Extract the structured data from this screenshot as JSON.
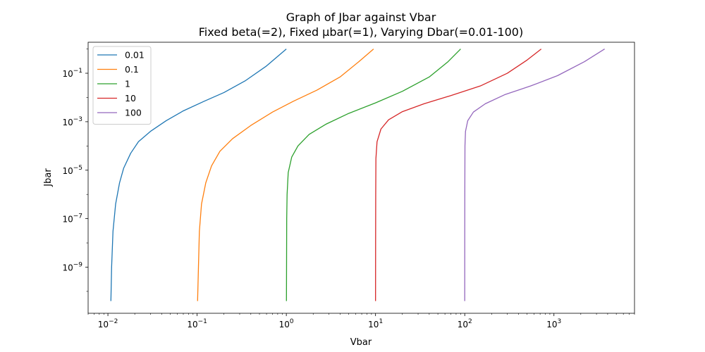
{
  "chart_data": {
    "type": "line",
    "title": "Graph of Jbar against Vbar",
    "subtitle": "Fixed beta(=2), Fixed µbar(=1), Varying Dbar(=0.01-100)",
    "xlabel": "Vbar",
    "ylabel": "Jbar",
    "xscale": "log",
    "yscale": "log",
    "xlim": [
      0.006,
      8000
    ],
    "ylim": [
      1.25e-11,
      1.9
    ],
    "x_ticks": [
      {
        "value": 0.01,
        "base": "10",
        "exp": "−2"
      },
      {
        "value": 0.1,
        "base": "10",
        "exp": "−1"
      },
      {
        "value": 1,
        "base": "10",
        "exp": "0"
      },
      {
        "value": 10,
        "base": "10",
        "exp": "1"
      },
      {
        "value": 100,
        "base": "10",
        "exp": "2"
      },
      {
        "value": 1000,
        "base": "10",
        "exp": "3"
      }
    ],
    "y_ticks": [
      {
        "value": 1e-09,
        "base": "10",
        "exp": "−9"
      },
      {
        "value": 1e-07,
        "base": "10",
        "exp": "−7"
      },
      {
        "value": 1e-05,
        "base": "10",
        "exp": "−5"
      },
      {
        "value": 0.001,
        "base": "10",
        "exp": "−3"
      },
      {
        "value": 0.1,
        "base": "10",
        "exp": "−1"
      }
    ],
    "grid": false,
    "legend_position": "top-left",
    "series": [
      {
        "name": "0.01",
        "color": "#1f77b4",
        "points": [
          [
            0.0108,
            4e-11
          ],
          [
            0.011,
            1e-09
          ],
          [
            0.0114,
            3e-08
          ],
          [
            0.0122,
            4e-07
          ],
          [
            0.0135,
            3e-06
          ],
          [
            0.015,
            1.2e-05
          ],
          [
            0.018,
            5e-05
          ],
          [
            0.022,
            0.00015
          ],
          [
            0.03,
            0.0004
          ],
          [
            0.045,
            0.0011
          ],
          [
            0.07,
            0.0028
          ],
          [
            0.12,
            0.007
          ],
          [
            0.2,
            0.016
          ],
          [
            0.35,
            0.05
          ],
          [
            0.6,
            0.2
          ],
          [
            1.0,
            1.0
          ]
        ]
      },
      {
        "name": "0.1",
        "color": "#ff7f0e",
        "points": [
          [
            0.1012,
            4e-11
          ],
          [
            0.1035,
            1e-09
          ],
          [
            0.106,
            3e-08
          ],
          [
            0.112,
            4e-07
          ],
          [
            0.125,
            3e-06
          ],
          [
            0.145,
            1.5e-05
          ],
          [
            0.18,
            6e-05
          ],
          [
            0.25,
            0.0002
          ],
          [
            0.4,
            0.0007
          ],
          [
            0.7,
            0.0025
          ],
          [
            1.2,
            0.007
          ],
          [
            2.2,
            0.02
          ],
          [
            4.0,
            0.07
          ],
          [
            6.5,
            0.3
          ],
          [
            9.5,
            1.0
          ]
        ]
      },
      {
        "name": "1",
        "color": "#2ca02c",
        "points": [
          [
            1.003,
            4e-11
          ],
          [
            1.006,
            1e-09
          ],
          [
            1.01,
            1e-07
          ],
          [
            1.02,
            1e-06
          ],
          [
            1.05,
            8e-06
          ],
          [
            1.15,
            3.5e-05
          ],
          [
            1.35,
            0.0001
          ],
          [
            1.8,
            0.0003
          ],
          [
            2.8,
            0.0008
          ],
          [
            5,
            0.0022
          ],
          [
            10,
            0.006
          ],
          [
            20,
            0.018
          ],
          [
            40,
            0.07
          ],
          [
            65,
            0.3
          ],
          [
            90,
            1.0
          ]
        ]
      },
      {
        "name": "10",
        "color": "#d62728",
        "points": [
          [
            10.0,
            4e-11
          ],
          [
            10.02,
            1e-08
          ],
          [
            10.05,
            1e-06
          ],
          [
            10.1,
            3e-05
          ],
          [
            10.4,
            0.00015
          ],
          [
            11.5,
            0.0005
          ],
          [
            14,
            0.0012
          ],
          [
            20,
            0.0026
          ],
          [
            35,
            0.0055
          ],
          [
            70,
            0.012
          ],
          [
            150,
            0.03
          ],
          [
            300,
            0.1
          ],
          [
            500,
            0.35
          ],
          [
            720,
            1.0
          ]
        ]
      },
      {
        "name": "100",
        "color": "#9467bd",
        "points": [
          [
            100.0,
            4e-11
          ],
          [
            100.05,
            1e-08
          ],
          [
            100.2,
            1e-06
          ],
          [
            100.6,
            0.0001
          ],
          [
            102,
            0.0004
          ],
          [
            108,
            0.0011
          ],
          [
            125,
            0.0025
          ],
          [
            170,
            0.0055
          ],
          [
            280,
            0.013
          ],
          [
            550,
            0.03
          ],
          [
            1100,
            0.08
          ],
          [
            2200,
            0.3
          ],
          [
            3700,
            1.0
          ]
        ]
      }
    ]
  }
}
